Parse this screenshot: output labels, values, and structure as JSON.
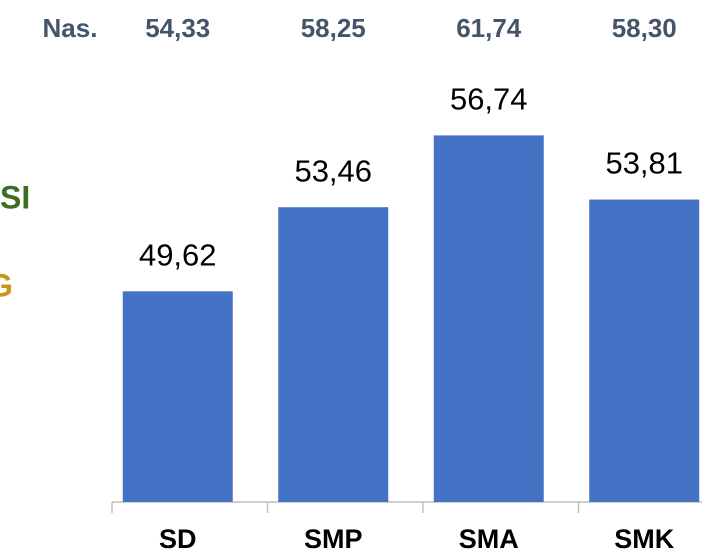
{
  "chart_data": {
    "type": "bar",
    "categories": [
      "SD",
      "SMP",
      "SMA",
      "SMK"
    ],
    "values": [
      49.62,
      53.46,
      56.74,
      53.81
    ],
    "value_labels": [
      "49,62",
      "53,46",
      "56,74",
      "53,81"
    ],
    "color": "#4472c4",
    "ylim": [
      40,
      60
    ],
    "national": {
      "label": "Nas.",
      "values": [
        "54,33",
        "58,25",
        "61,74",
        "58,30"
      ]
    },
    "annotations": [
      "SI",
      "G"
    ]
  }
}
